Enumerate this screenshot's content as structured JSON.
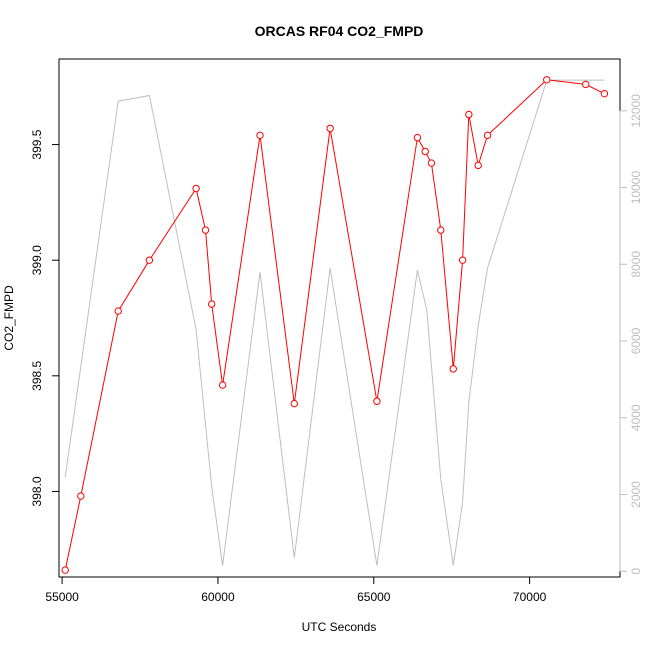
{
  "chart_data": {
    "type": "line",
    "title": "ORCAS RF04 CO2_FMPD",
    "xlabel": "UTC Seconds",
    "ylabel": "CO2_FMPD",
    "xlim": [
      54900,
      72900
    ],
    "ylim": [
      397.63,
      399.87
    ],
    "y2lim": [
      -150,
      13350
    ],
    "x_ticks": [
      55000,
      60000,
      65000,
      70000
    ],
    "y_ticks": [
      398.0,
      398.5,
      399.0,
      399.5
    ],
    "y2_ticks": [
      0,
      2000,
      4000,
      6000,
      8000,
      10000,
      12000
    ],
    "grid": false,
    "series": [
      {
        "color": "#ff0000",
        "axis": "left",
        "markers": "open-circle",
        "x": [
          55100,
          55600,
          56800,
          57800,
          59300,
          59600,
          59800,
          60150,
          61350,
          62450,
          63600,
          65100,
          66400,
          66650,
          66850,
          67150,
          67550,
          67850,
          68050,
          68350,
          68650,
          70550,
          71800,
          72400
        ],
        "y": [
          397.66,
          397.98,
          398.78,
          399.0,
          399.31,
          399.13,
          398.81,
          398.46,
          399.54,
          398.38,
          399.57,
          398.39,
          399.53,
          399.47,
          399.42,
          399.13,
          398.53,
          399.0,
          399.63,
          399.41,
          399.54,
          399.78,
          399.76,
          399.72
        ]
      },
      {
        "color": "#bebebe",
        "axis": "right",
        "markers": "none",
        "x": [
          55100,
          56800,
          57800,
          59300,
          59800,
          60150,
          61350,
          62450,
          63600,
          65100,
          66400,
          66700,
          67150,
          67550,
          67850,
          68050,
          68350,
          68650,
          70550,
          72400
        ],
        "y": [
          2450,
          12250,
          12400,
          6300,
          2200,
          150,
          7800,
          350,
          7900,
          150,
          7850,
          6800,
          2400,
          150,
          1800,
          4400,
          6400,
          7900,
          12800,
          12800
        ]
      }
    ]
  }
}
